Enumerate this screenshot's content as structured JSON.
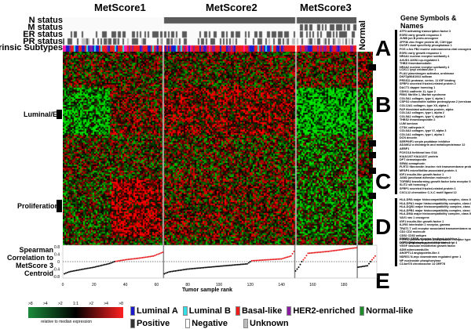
{
  "titles": [
    "MetScore1",
    "MetScore2",
    "MetScore3"
  ],
  "normal_label": "Normal",
  "row_labels": [
    "N status",
    "M status",
    "ER status",
    "PR status",
    "Intrinsic Subtypes"
  ],
  "side_labels": {
    "luminal": "Luminal/ER",
    "proliferation": "Proliferation"
  },
  "gene_header": "Gene Symbols & Names",
  "clusters": [
    {
      "letter": "A",
      "genes": [
        "ATF3 activating transcription factor 3",
        "EGR3 early growth response 3",
        "JUNB jun B proto-oncogene",
        "ZFP36 zinc finger protein 36, C3H type",
        "DUSP1 dual specificity phosphatase 1",
        "FOS v-fos FBJ murine osteosarcoma viral oncogene",
        "EGR1 early growth response 1",
        "NR4A1 nuclear receptor subfamily 4",
        "AXUD1 AXIN1 up-regulated 1",
        "THBD thrombomodulin",
        "NR4A2 nuclear receptor subfamily 4"
      ]
    },
    {
      "letter": "B",
      "genes": [
        "LOXL1 lysyl oxidase-like 1",
        "PLAU plasminogen activator, urokinase",
        "DKFZp564I1922 adlican",
        "PRSS11 protease, serine, 11 IGF binding",
        "SFRP2 secreted frizzled-related protein 2",
        "DACT1 dapper homolog 1",
        "CDH11 cadherin 11, type 2",
        "FBN1 fibrillin 1, Marfan syndrome",
        "COL5A1 collagen, type V, alpha 1",
        "CSPG2 chondroitin sulfate proteoglycan 2 (versican)",
        "COL12A1 collagen, type XII, alpha 1",
        "FAP fibroblast activation protein, alpha",
        "COL1A2 collagen, type I, alpha 2",
        "COL5A2 collagen, type V, alpha 2",
        "THBS2 thrombospondin 2",
        "LUM lumican",
        "CTSK cathepsin K",
        "COL6A3 collagen, type VI, alpha 3",
        "COL1A1 collagen, type I, alpha 1",
        "DCN decorin",
        "SERPINF1 serpin peptidase inhibitor",
        "ADAM12 a disintegrin and metalloproteinase 12",
        "AEBP1"
      ]
    },
    {
      "letter": "C",
      "genes": [
        "FOXO1A forkhead box O1A",
        "KIAA1237 KIAA1237 protein",
        "DPT dermatopontin",
        "SEMA semaphorin",
        "FLRT2 fibronectin leucine rich transmembrane protein 2",
        "MFAP4 microfibrillar-associated protein 4",
        "IGF1 insulin-like growth factor 1",
        "JAM2 junctional adhesion molecule 2",
        "TGFBR2 transforming growth factor beta receptor II",
        "SLIT2 slit homolog 2",
        "SFRP1 secreted frizzled-related protein 1",
        "CXCL12 chemokine C-X-C motif ligand 12"
      ]
    },
    {
      "letter": "D",
      "genes": [
        "HLA-DRA major histocompatibility complex, class II, DR alpha",
        "HLA-DPA1 major histocompatibility complex, class II, DP alpha 1",
        "HLA-DQB1 major histocompatibility complex, class II, DQ beta 1",
        "HLA-DPB1 major histocompatibility complex, class II, DP beta 1",
        "HLA-DMA major histocompatibility complex, class II, DM alpha",
        "VAV1 vav 1 oncogene",
        "IGF1 insulin-like growth factor 1",
        "IL2RG interleukin 2 receptor, gamma",
        "TRAT1 T cell receptor associated transmembrane adaptor 1",
        "CD2 CD2 molecule",
        "CD52 CD52 antigen",
        "PTPRC protein tyrosine phosphatase, receptor type, C",
        "LCP1 lymphocyte cytosolic protein 1"
      ]
    },
    {
      "letter": "E",
      "genes": [
        "ERRFI1 ERBB receptor feedback inhibitor 1",
        "DDIT4 DNA-damage-inducible transcript 4",
        "VEGF vascular endothelial growth factor",
        "ADM adrenomedullin",
        "ANGPTL4 angiopoietin-like 4",
        "NDRG1 N-myc downstream regulated gene 1",
        "NP nucleoside phosphorylase",
        "C14orf78 chromosome 14 ORF78"
      ]
    }
  ],
  "chart_data": {
    "type": "scatter",
    "ylabel": "Spearman Correlation to MetScore 3 Centroid",
    "xlabel": "Tumor sample rank",
    "ylim": [
      -0.8,
      0.8
    ],
    "yticks": [
      "0.8",
      "0.4",
      "0",
      "-0.4",
      "-0.8"
    ],
    "xlim": [
      0,
      200
    ],
    "xticks": [
      "0",
      "20",
      "40",
      "60",
      "80",
      "100",
      "120",
      "140",
      "160",
      "180"
    ],
    "reference_line": 0,
    "colors": {
      "positive": "#e8191c",
      "negative": "#000000"
    },
    "groups": [
      {
        "points": [
          [
            1,
            -0.65
          ],
          [
            4,
            -0.55
          ],
          [
            10,
            -0.45
          ],
          [
            20,
            -0.3
          ],
          [
            30,
            -0.1
          ],
          [
            33,
            0.0
          ],
          [
            40,
            0.1
          ],
          [
            50,
            0.2
          ],
          [
            58,
            0.3
          ],
          [
            64,
            0.5
          ]
        ]
      },
      {
        "points": [
          [
            65,
            -0.65
          ],
          [
            68,
            -0.55
          ],
          [
            80,
            -0.4
          ],
          [
            100,
            -0.25
          ],
          [
            118,
            -0.12
          ],
          [
            121,
            0.05
          ],
          [
            140,
            0.15
          ],
          [
            146,
            0.3
          ],
          [
            148,
            0.55
          ]
        ]
      },
      {
        "points": [
          [
            149,
            -0.5
          ],
          [
            151,
            -0.3
          ],
          [
            153,
            0.0
          ],
          [
            155,
            0.2
          ],
          [
            157,
            0.45
          ],
          [
            170,
            0.55
          ],
          [
            188,
            0.75
          ]
        ]
      },
      {
        "points": [
          [
            189,
            -0.3
          ],
          [
            195,
            -0.22
          ],
          [
            197,
            0.0
          ],
          [
            200,
            0.3
          ]
        ]
      }
    ]
  },
  "colorbar": {
    "ticks": [
      ">8",
      ">4",
      ">2",
      "1:1",
      ">2",
      ">4",
      ">8"
    ],
    "caption": "relative to median expression",
    "low": "#1a8a3a",
    "mid": "#000000",
    "high": "#ff2020"
  },
  "subtype_legend": [
    {
      "label": "Luminal A",
      "color": "#1a1acc"
    },
    {
      "label": "Luminal B",
      "color": "#33e0e8"
    },
    {
      "label": "Basal-like",
      "color": "#ee1c1c"
    },
    {
      "label": "HER2-enriched",
      "color": "#8a1aa0"
    },
    {
      "label": "Normal-like",
      "color": "#1e8c2a"
    }
  ],
  "status_legend": [
    {
      "label": "Positive",
      "color": "#333333"
    },
    {
      "label": "Negative",
      "color": "#ffffff"
    },
    {
      "label": "Unknown",
      "color": "#bbbbbb"
    }
  ]
}
